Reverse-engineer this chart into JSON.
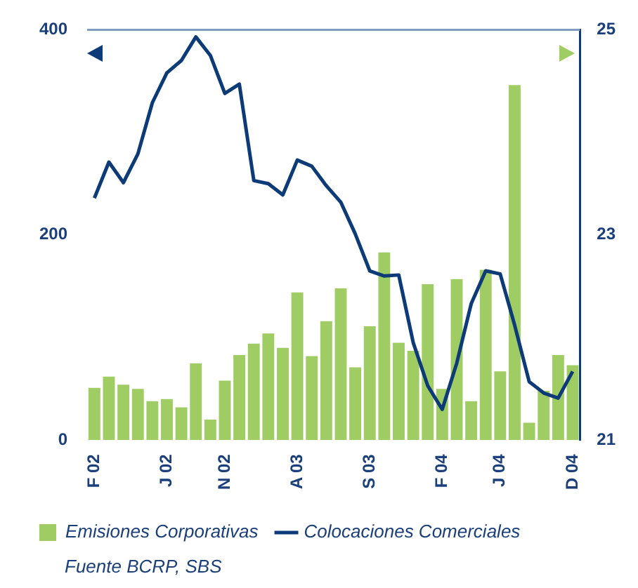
{
  "chart_data": {
    "type": "bar",
    "categories": [
      "F 02",
      null,
      null,
      null,
      null,
      "J 02",
      null,
      null,
      null,
      "N 02",
      null,
      null,
      null,
      null,
      "A 03",
      null,
      null,
      null,
      null,
      "S 03",
      null,
      null,
      null,
      null,
      "F 04",
      null,
      null,
      null,
      "J 04",
      null,
      null,
      null,
      null,
      "D 04"
    ],
    "series": [
      {
        "name": "Emisiones Corporativas",
        "color": "#a0cd63",
        "values": [
          51,
          62,
          54,
          50,
          38,
          40,
          32,
          75,
          20,
          58,
          83,
          94,
          104,
          90,
          144,
          82,
          116,
          148,
          71,
          111,
          183,
          95,
          87,
          152,
          50,
          157,
          38,
          166,
          67,
          346,
          17,
          48,
          83,
          73
        ]
      },
      {
        "name": "Colocaciones Comerciales",
        "type": "line",
        "axis": "y2",
        "color": "#0d3b78",
        "values": [
          23.36,
          23.71,
          23.51,
          23.79,
          24.29,
          24.58,
          24.7,
          24.93,
          24.75,
          24.38,
          24.47,
          23.53,
          23.5,
          23.39,
          23.73,
          23.67,
          23.48,
          23.32,
          23.01,
          22.65,
          22.6,
          22.61,
          21.95,
          21.53,
          21.3,
          21.75,
          22.33,
          22.65,
          22.62,
          22.12,
          21.57,
          21.46,
          21.41,
          21.67
        ]
      }
    ],
    "ylim": [
      0,
      400
    ],
    "yticks": [
      0,
      200,
      400
    ],
    "y2lim": [
      21,
      25
    ],
    "y2ticks": [
      21,
      23,
      25
    ],
    "grid": false,
    "legend": "bottom left",
    "marker": "none",
    "annotations": [
      "Fuente BCRP, SBS"
    ]
  }
}
